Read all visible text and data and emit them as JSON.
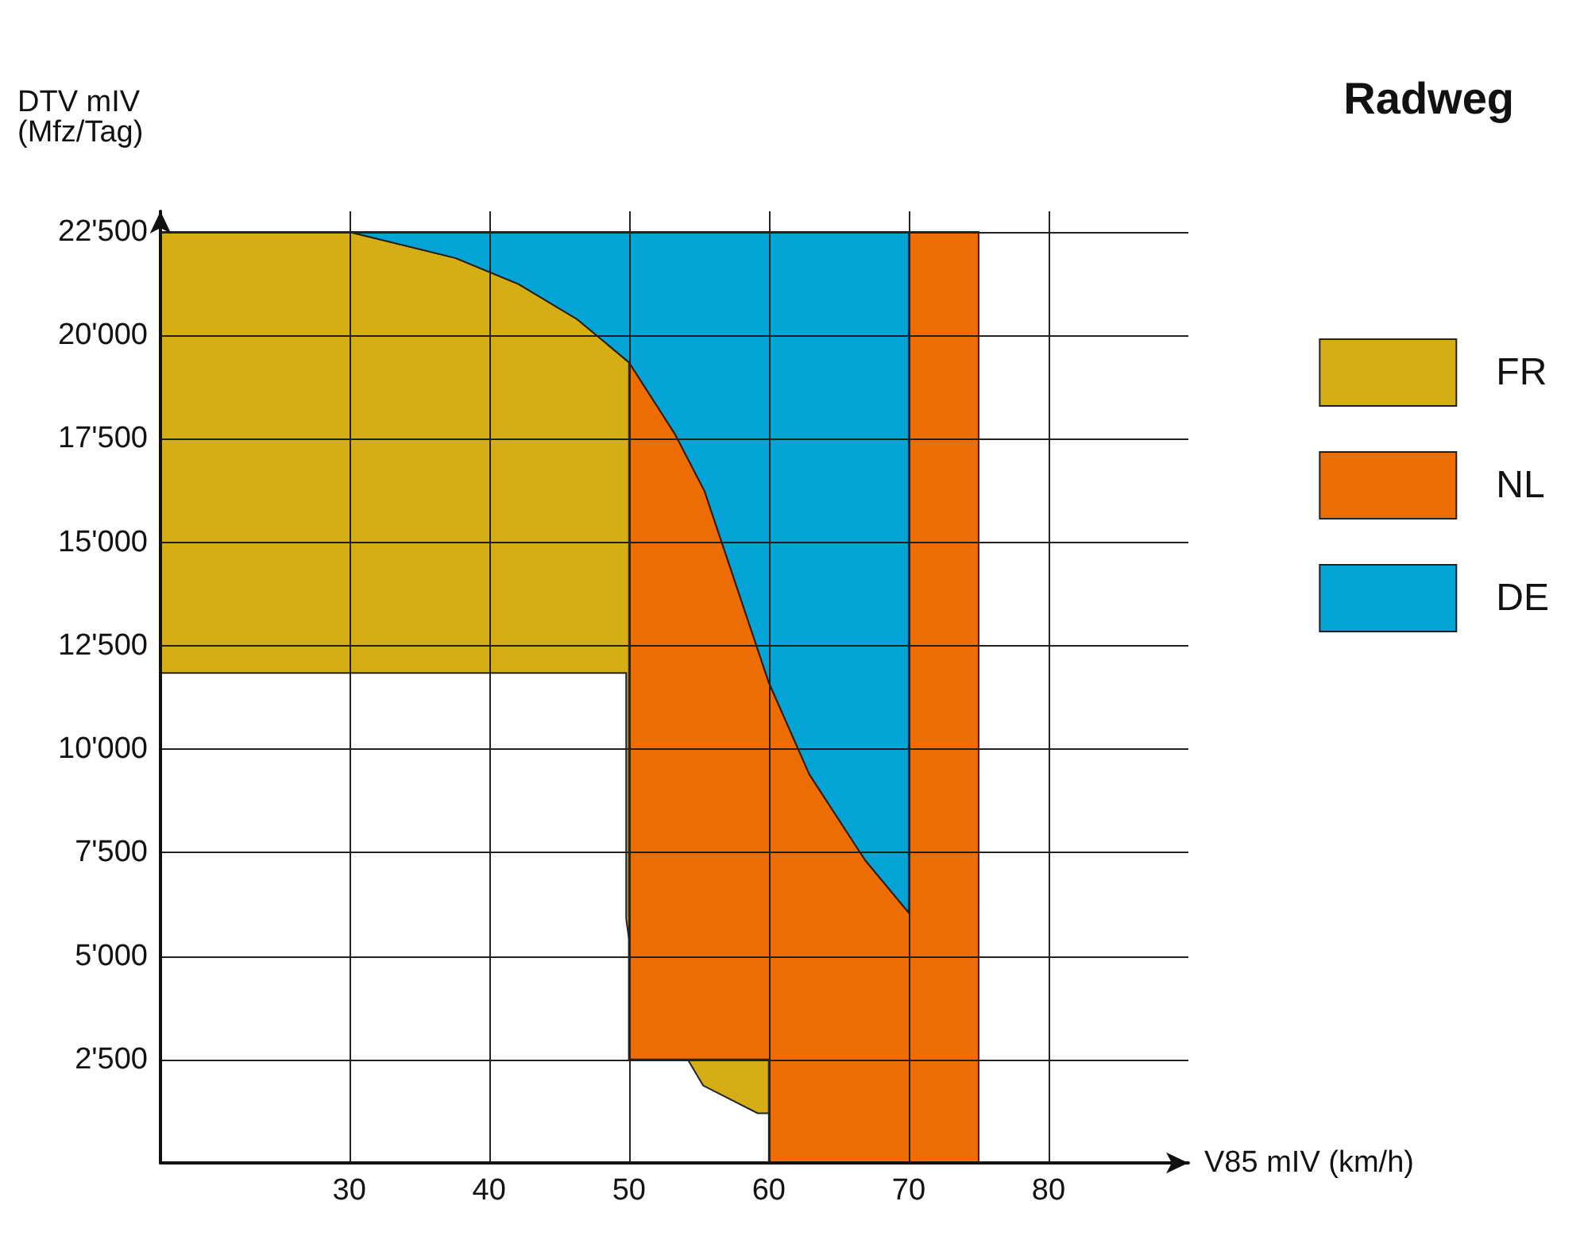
{
  "chart_data": {
    "type": "area",
    "title": "Radweg",
    "xlabel": "V85 mIV (km/h)",
    "ylabel": "DTV mIV\n(Mfz/Tag)",
    "xlim": [
      16.5,
      90
    ],
    "ylim": [
      0,
      23000
    ],
    "xticks": [
      30,
      40,
      50,
      60,
      70,
      80
    ],
    "yticks": [
      {
        "value": 2500,
        "label": "2'500"
      },
      {
        "value": 5000,
        "label": "5'000"
      },
      {
        "value": 7500,
        "label": "7'500"
      },
      {
        "value": 10000,
        "label": "10'000"
      },
      {
        "value": 12500,
        "label": "12'500"
      },
      {
        "value": 15000,
        "label": "15'000"
      },
      {
        "value": 17500,
        "label": "17'500"
      },
      {
        "value": 20000,
        "label": "20'000"
      },
      {
        "value": 22500,
        "label": "22'500"
      }
    ],
    "grid": true,
    "legend": "right",
    "series": [
      {
        "name": "FR",
        "color": "#d4ae14",
        "x": [
          16.5,
          30,
          37.6,
          42.1,
          46.3,
          50,
          60,
          60,
          59.2,
          55.3,
          54.2,
          50,
          50,
          49.8,
          49.8,
          16.5
        ],
        "values": [
          22500,
          22500,
          21870,
          21240,
          20390,
          19350,
          2500,
          1200,
          1200,
          1870,
          2500,
          2500,
          5400,
          5900,
          11840,
          11840
        ]
      },
      {
        "name": "NL",
        "color": "#ee6c04",
        "x": [
          50,
          53.3,
          55.4,
          60,
          62.9,
          66.9,
          70,
          70,
          75,
          75,
          60,
          60,
          50
        ],
        "values": [
          19350,
          17610,
          16240,
          11610,
          9390,
          7310,
          6050,
          22500,
          22500,
          0,
          0,
          2500,
          2500
        ]
      },
      {
        "name": "DE",
        "color": "#04a5d6",
        "x": [
          30,
          70,
          70,
          66.9,
          62.9,
          60,
          55.4,
          53.3,
          50,
          46.3,
          42.1,
          37.6
        ],
        "values": [
          22500,
          22500,
          6050,
          7310,
          9390,
          11610,
          16240,
          17610,
          19350,
          20390,
          21240,
          21870
        ]
      }
    ]
  }
}
